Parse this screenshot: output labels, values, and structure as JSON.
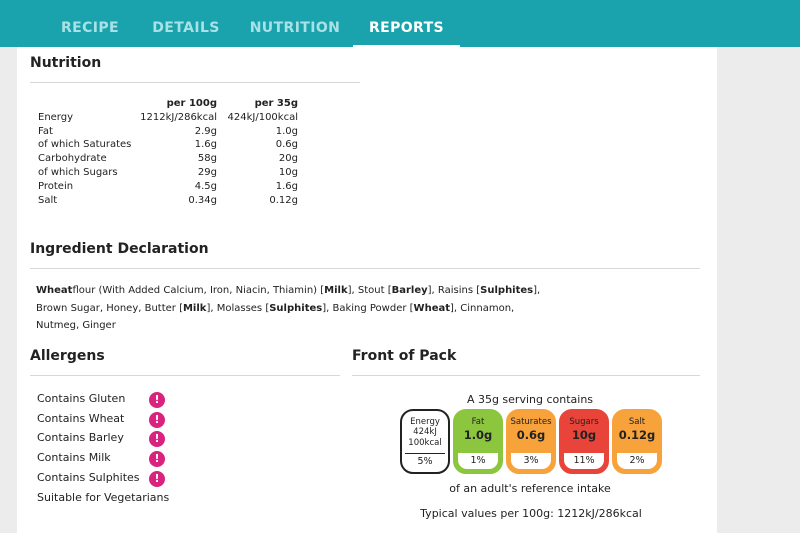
{
  "tabs": [
    {
      "label": "RECIPE",
      "active": false
    },
    {
      "label": "DETAILS",
      "active": false
    },
    {
      "label": "NUTRITION",
      "active": false
    },
    {
      "label": "REPORTS",
      "active": true
    }
  ],
  "nutrition": {
    "title": "Nutrition",
    "headers": [
      "",
      "per 100g",
      "per 35g"
    ],
    "rows": [
      [
        "Energy",
        "1212kJ/286kcal",
        "424kJ/100kcal"
      ],
      [
        "Fat",
        "2.9g",
        "1.0g"
      ],
      [
        "of which Saturates",
        "1.6g",
        "0.6g"
      ],
      [
        "Carbohydrate",
        "58g",
        "20g"
      ],
      [
        "of which Sugars",
        "29g",
        "10g"
      ],
      [
        "Protein",
        "4.5g",
        "1.6g"
      ],
      [
        "Salt",
        "0.34g",
        "0.12g"
      ]
    ]
  },
  "ingredients": {
    "title": "Ingredient Declaration",
    "parts": [
      {
        "t": "Wheat",
        "b": true
      },
      {
        "t": "flour (With Added Calcium, Iron, Niacin, Thiamin) [",
        "b": false
      },
      {
        "t": "Milk",
        "b": true
      },
      {
        "t": "], Stout [",
        "b": false
      },
      {
        "t": "Barley",
        "b": true
      },
      {
        "t": "], Raisins [",
        "b": false
      },
      {
        "t": "Sulphites",
        "b": true
      },
      {
        "t": "], Brown Sugar, Honey, Butter [",
        "b": false
      },
      {
        "t": "Milk",
        "b": true
      },
      {
        "t": "], Molasses [",
        "b": false
      },
      {
        "t": "Sulphites",
        "b": true
      },
      {
        "t": "], Baking Powder [",
        "b": false
      },
      {
        "t": "Wheat",
        "b": true
      },
      {
        "t": "], Cinnamon, Nutmeg, Ginger",
        "b": false
      }
    ]
  },
  "allergens": {
    "title": "Allergens",
    "items": [
      {
        "label": "Contains Gluten",
        "warning": true
      },
      {
        "label": "Contains Wheat",
        "warning": true
      },
      {
        "label": "Contains Barley",
        "warning": true
      },
      {
        "label": "Contains Milk",
        "warning": true
      },
      {
        "label": "Contains Sulphites",
        "warning": true
      },
      {
        "label": "Suitable for Vegetarians",
        "warning": false
      }
    ],
    "warning_glyph": "!",
    "warning_color": "#d9237e"
  },
  "front_of_pack": {
    "title": "Front of Pack",
    "intro": "A 35g serving contains",
    "energy": {
      "name": "Energy",
      "kj": "424kJ",
      "kcal": "100kcal",
      "percent": "5%"
    },
    "tiles": [
      {
        "name": "Fat",
        "value": "1.0g",
        "percent": "1%",
        "color": "#8cc63f"
      },
      {
        "name": "Saturates",
        "value": "0.6g",
        "percent": "3%",
        "color": "#f7a23b"
      },
      {
        "name": "Sugars",
        "value": "10g",
        "percent": "11%",
        "color": "#e8443a"
      },
      {
        "name": "Salt",
        "value": "0.12g",
        "percent": "2%",
        "color": "#f7a23b"
      }
    ],
    "reference": "of an adult's reference intake",
    "typical": "Typical values per 100g: 1212kJ/286kcal"
  },
  "colors": {
    "brand": "#1aa3ad",
    "panel": "#ffffff",
    "background": "#ececec"
  }
}
